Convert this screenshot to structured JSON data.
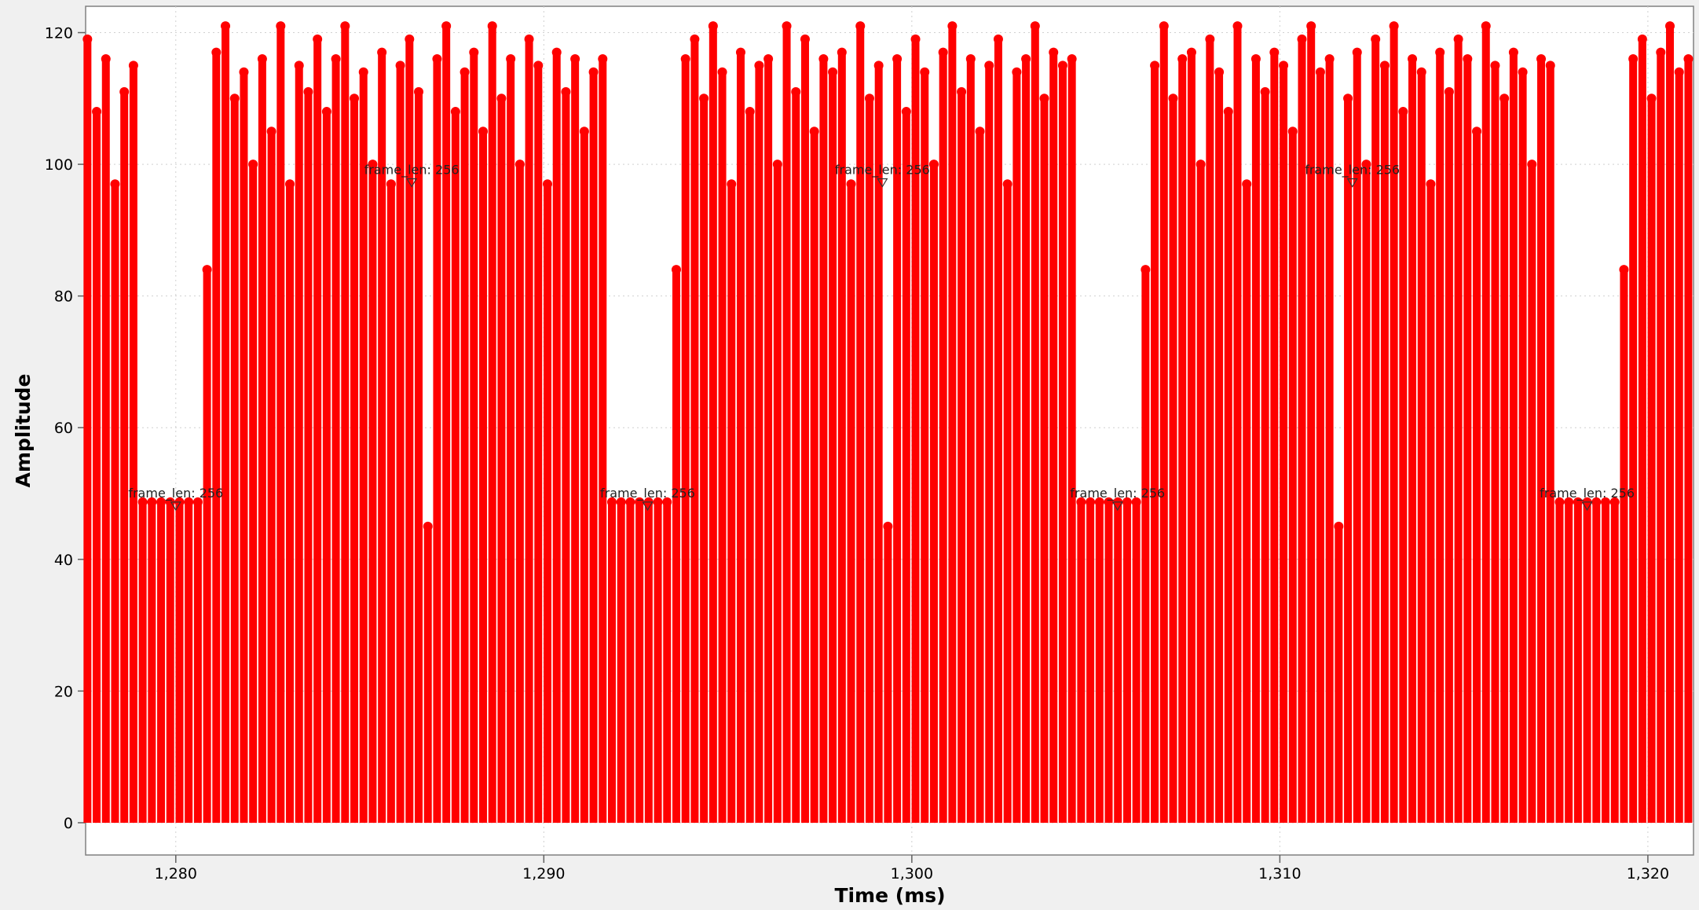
{
  "chart_data": {
    "type": "stem",
    "xlabel": "Time (ms)",
    "ylabel": "Amplitude",
    "xlim": [
      1277.55,
      1321.24
    ],
    "ylim": [
      -4.9,
      124
    ],
    "xticks": [
      {
        "value": 1280,
        "label": "1,280"
      },
      {
        "value": 1290,
        "label": "1,290"
      },
      {
        "value": 1300,
        "label": "1,300"
      },
      {
        "value": 1310,
        "label": "1,310"
      },
      {
        "value": 1320,
        "label": "1,320"
      }
    ],
    "yticks": [
      0,
      20,
      40,
      60,
      80,
      100,
      120
    ],
    "grid": true,
    "x": [
      1277.6,
      1277.85,
      1278.1,
      1278.35,
      1278.6,
      1278.85,
      1279.1,
      1279.35,
      1279.6,
      1279.85,
      1280.1,
      1280.35,
      1280.6,
      1280.85,
      1281.1,
      1281.35,
      1281.6,
      1281.85,
      1282.1,
      1282.35,
      1282.6,
      1282.85,
      1283.1,
      1283.35,
      1283.6,
      1283.85,
      1284.1,
      1284.35,
      1284.6,
      1284.85,
      1285.1,
      1285.35,
      1285.6,
      1285.85,
      1286.1,
      1286.35,
      1286.6,
      1286.85,
      1287.1,
      1287.35,
      1287.6,
      1287.85,
      1288.1,
      1288.35,
      1288.6,
      1288.85,
      1289.1,
      1289.35,
      1289.6,
      1289.85,
      1290.1,
      1290.35,
      1290.6,
      1290.85,
      1291.1,
      1291.35,
      1291.6,
      1291.85,
      1292.1,
      1292.35,
      1292.6,
      1292.85,
      1293.1,
      1293.35,
      1293.6,
      1293.85,
      1294.1,
      1294.35,
      1294.6,
      1294.85,
      1295.1,
      1295.35,
      1295.6,
      1295.85,
      1296.1,
      1296.35,
      1296.6,
      1296.85,
      1297.1,
      1297.35,
      1297.6,
      1297.85,
      1298.1,
      1298.35,
      1298.6,
      1298.85,
      1299.1,
      1299.35,
      1299.6,
      1299.85,
      1300.1,
      1300.35,
      1300.6,
      1300.85,
      1301.1,
      1301.35,
      1301.6,
      1301.85,
      1302.1,
      1302.35,
      1302.6,
      1302.85,
      1303.1,
      1303.35,
      1303.6,
      1303.85,
      1304.1,
      1304.35,
      1304.6,
      1304.85,
      1305.1,
      1305.35,
      1305.6,
      1305.85,
      1306.1,
      1306.35,
      1306.6,
      1306.85,
      1307.1,
      1307.35,
      1307.6,
      1307.85,
      1308.1,
      1308.35,
      1308.6,
      1308.85,
      1309.1,
      1309.35,
      1309.6,
      1309.85,
      1310.1,
      1310.35,
      1310.6,
      1310.85,
      1311.1,
      1311.35,
      1311.6,
      1311.85,
      1312.1,
      1312.35,
      1312.6,
      1312.85,
      1313.1,
      1313.35,
      1313.6,
      1313.85,
      1314.1,
      1314.35,
      1314.6,
      1314.85,
      1315.1,
      1315.35,
      1315.6,
      1315.85,
      1316.1,
      1316.35,
      1316.6,
      1316.85,
      1317.1,
      1317.35,
      1317.6,
      1317.85,
      1318.1,
      1318.35,
      1318.6,
      1318.85,
      1319.1,
      1319.35,
      1319.6,
      1319.85,
      1320.1,
      1320.35,
      1320.6,
      1320.85,
      1321.1
    ],
    "series": [
      {
        "color": "#ff0000",
        "values": [
          119,
          108,
          116,
          97,
          111,
          115,
          48.7,
          48.7,
          48.7,
          48.7,
          48.7,
          48.7,
          48.7,
          84,
          117,
          121,
          110,
          114,
          100,
          116,
          105,
          121,
          97,
          115,
          111,
          119,
          108,
          116,
          121,
          110,
          114,
          100,
          117,
          97,
          115,
          119,
          111,
          45,
          116,
          121,
          108,
          114,
          117,
          105,
          121,
          110,
          116,
          100,
          119,
          115,
          97,
          117,
          111,
          116,
          105,
          114,
          116,
          48.7,
          48.7,
          48.7,
          48.7,
          48.7,
          48.7,
          48.7,
          84,
          116,
          119,
          110,
          121,
          114,
          97,
          117,
          108,
          115,
          116,
          100,
          121,
          111,
          119,
          105,
          116,
          114,
          117,
          97,
          121,
          110,
          115,
          45,
          116,
          108,
          119,
          114,
          100,
          117,
          121,
          111,
          116,
          105,
          115,
          119,
          97,
          114,
          116,
          121,
          110,
          117,
          115,
          116,
          48.7,
          48.7,
          48.7,
          48.7,
          48.7,
          48.7,
          48.7,
          84,
          115,
          121,
          110,
          116,
          117,
          100,
          119,
          114,
          108,
          121,
          97,
          116,
          111,
          117,
          115,
          105,
          119,
          121,
          114,
          116,
          45,
          110,
          117,
          100,
          119,
          115,
          121,
          108,
          116,
          114,
          97,
          117,
          111,
          119,
          116,
          105,
          121,
          115,
          110,
          117,
          114,
          100,
          116,
          115,
          48.7,
          48.7,
          48.7,
          48.7,
          48.7,
          48.7,
          48.7,
          84,
          116,
          119,
          110,
          117,
          121,
          114,
          116
        ]
      }
    ],
    "tags": [
      {
        "x": 1280,
        "y": 48.7,
        "label": "frame_len: 256"
      },
      {
        "x": 1286.41,
        "y": 97.8,
        "label": "frame_len: 256"
      },
      {
        "x": 1292.82,
        "y": 48.7,
        "label": "frame_len: 256"
      },
      {
        "x": 1299.2,
        "y": 97.8,
        "label": "frame_len: 256"
      },
      {
        "x": 1305.59,
        "y": 48.7,
        "label": "frame_len: 256"
      },
      {
        "x": 1311.97,
        "y": 97.8,
        "label": "frame_len: 256"
      },
      {
        "x": 1318.35,
        "y": 48.7,
        "label": "frame_len: 256"
      }
    ]
  }
}
